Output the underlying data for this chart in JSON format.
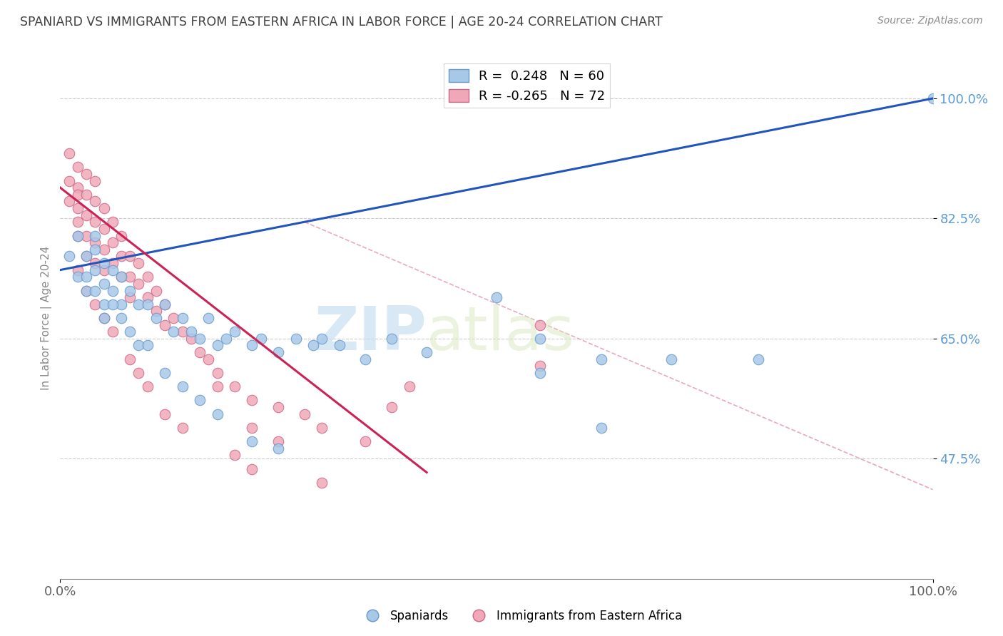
{
  "title": "SPANIARD VS IMMIGRANTS FROM EASTERN AFRICA IN LABOR FORCE | AGE 20-24 CORRELATION CHART",
  "source_text": "Source: ZipAtlas.com",
  "ylabel": "In Labor Force | Age 20-24",
  "xlim": [
    0.0,
    1.0
  ],
  "ylim": [
    0.3,
    1.06
  ],
  "xticklabels": [
    "0.0%",
    "100.0%"
  ],
  "ytick_positions": [
    0.475,
    0.65,
    0.825,
    1.0
  ],
  "ytick_labels": [
    "47.5%",
    "65.0%",
    "82.5%",
    "100.0%"
  ],
  "legend_labels": [
    "Spaniards",
    "Immigrants from Eastern Africa"
  ],
  "blue_R": 0.248,
  "blue_N": 60,
  "pink_R": -0.265,
  "pink_N": 72,
  "watermark_zip": "ZIP",
  "watermark_atlas": "atlas",
  "background_color": "#ffffff",
  "grid_color": "#cccccc",
  "title_color": "#404040",
  "axis_label_color": "#5b9bd5",
  "blue_scatter_color": "#a8c8e8",
  "blue_scatter_edge": "#6699cc",
  "pink_scatter_color": "#f0a8b8",
  "pink_scatter_edge": "#cc6688",
  "blue_line_color": "#2255bb",
  "pink_line_color": "#cc2255",
  "dashed_line_color": "#e8aabb",
  "blue_line_x0": 0.0,
  "blue_line_y0": 0.75,
  "blue_line_x1": 1.0,
  "blue_line_y1": 1.0,
  "pink_line_x0": 0.0,
  "pink_line_y0": 0.87,
  "pink_line_x1": 0.42,
  "pink_line_y1": 0.455,
  "dash_line_x0": 0.28,
  "dash_line_y0": 0.82,
  "dash_line_x1": 1.0,
  "dash_line_y1": 0.43,
  "blue_points_x": [
    0.01,
    0.02,
    0.02,
    0.03,
    0.03,
    0.04,
    0.04,
    0.04,
    0.05,
    0.05,
    0.05,
    0.06,
    0.06,
    0.07,
    0.07,
    0.08,
    0.09,
    0.1,
    0.11,
    0.12,
    0.13,
    0.14,
    0.15,
    0.16,
    0.17,
    0.18,
    0.19,
    0.2,
    0.22,
    0.23,
    0.25,
    0.27,
    0.29,
    0.3,
    0.32,
    0.35,
    0.38,
    0.42,
    0.5,
    0.55,
    0.62,
    0.7,
    0.8,
    1.0,
    0.03,
    0.04,
    0.05,
    0.06,
    0.07,
    0.08,
    0.09,
    0.1,
    0.12,
    0.14,
    0.16,
    0.18,
    0.22,
    0.25,
    0.55,
    0.62
  ],
  "blue_points_y": [
    0.77,
    0.74,
    0.8,
    0.77,
    0.72,
    0.8,
    0.75,
    0.78,
    0.76,
    0.73,
    0.7,
    0.75,
    0.72,
    0.74,
    0.7,
    0.72,
    0.7,
    0.7,
    0.68,
    0.7,
    0.66,
    0.68,
    0.66,
    0.65,
    0.68,
    0.64,
    0.65,
    0.66,
    0.64,
    0.65,
    0.63,
    0.65,
    0.64,
    0.65,
    0.64,
    0.62,
    0.65,
    0.63,
    0.71,
    0.65,
    0.62,
    0.62,
    0.62,
    1.0,
    0.74,
    0.72,
    0.68,
    0.7,
    0.68,
    0.66,
    0.64,
    0.64,
    0.6,
    0.58,
    0.56,
    0.54,
    0.5,
    0.49,
    0.6,
    0.52
  ],
  "pink_points_x": [
    0.01,
    0.01,
    0.01,
    0.02,
    0.02,
    0.02,
    0.02,
    0.02,
    0.02,
    0.03,
    0.03,
    0.03,
    0.03,
    0.03,
    0.04,
    0.04,
    0.04,
    0.04,
    0.04,
    0.05,
    0.05,
    0.05,
    0.05,
    0.06,
    0.06,
    0.06,
    0.07,
    0.07,
    0.07,
    0.08,
    0.08,
    0.08,
    0.09,
    0.09,
    0.1,
    0.1,
    0.11,
    0.11,
    0.12,
    0.12,
    0.13,
    0.14,
    0.15,
    0.16,
    0.17,
    0.18,
    0.2,
    0.22,
    0.25,
    0.28,
    0.3,
    0.35,
    0.55,
    0.55,
    0.02,
    0.03,
    0.04,
    0.05,
    0.06,
    0.08,
    0.09,
    0.1,
    0.12,
    0.14,
    0.2,
    0.22,
    0.3,
    0.38,
    0.4,
    0.18,
    0.22,
    0.25
  ],
  "pink_points_y": [
    0.88,
    0.92,
    0.85,
    0.9,
    0.87,
    0.86,
    0.84,
    0.82,
    0.8,
    0.89,
    0.86,
    0.83,
    0.8,
    0.77,
    0.88,
    0.85,
    0.82,
    0.79,
    0.76,
    0.84,
    0.81,
    0.78,
    0.75,
    0.82,
    0.79,
    0.76,
    0.8,
    0.77,
    0.74,
    0.77,
    0.74,
    0.71,
    0.76,
    0.73,
    0.74,
    0.71,
    0.72,
    0.69,
    0.7,
    0.67,
    0.68,
    0.66,
    0.65,
    0.63,
    0.62,
    0.6,
    0.58,
    0.56,
    0.55,
    0.54,
    0.52,
    0.5,
    0.67,
    0.61,
    0.75,
    0.72,
    0.7,
    0.68,
    0.66,
    0.62,
    0.6,
    0.58,
    0.54,
    0.52,
    0.48,
    0.46,
    0.44,
    0.55,
    0.58,
    0.58,
    0.52,
    0.5
  ]
}
